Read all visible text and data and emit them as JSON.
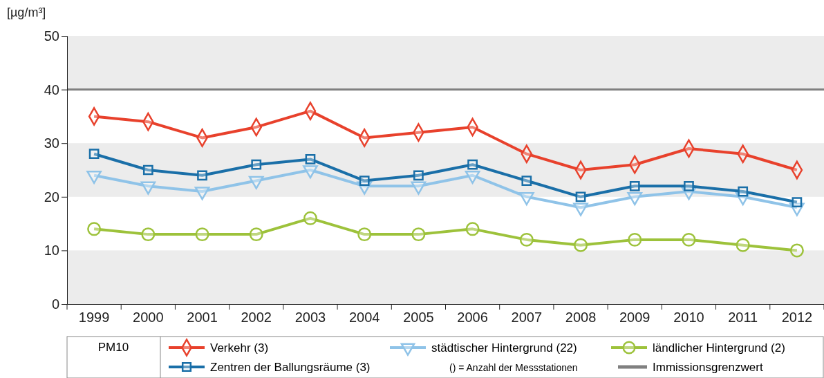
{
  "chart_data": {
    "type": "line",
    "ylabel": "[µg/m³]",
    "legend_title": "PM10",
    "categories": [
      "1999",
      "2000",
      "2001",
      "2002",
      "2003",
      "2004",
      "2005",
      "2006",
      "2007",
      "2008",
      "2009",
      "2010",
      "2011",
      "2012"
    ],
    "series": [
      {
        "name": "Verkehr (3)",
        "color": "#e8412c",
        "marker": "diamond",
        "values": [
          35,
          34,
          31,
          33,
          36,
          31,
          32,
          33,
          28,
          25,
          26,
          29,
          28,
          25
        ]
      },
      {
        "name": "städtischer Hintergrund (22)",
        "color": "#8fc3e8",
        "marker": "triangle",
        "values": [
          24,
          22,
          21,
          23,
          25,
          22,
          22,
          24,
          20,
          18,
          20,
          21,
          20,
          18
        ]
      },
      {
        "name": "ländlicher Hintergrund (2)",
        "color": "#9dc23b",
        "marker": "circle",
        "values": [
          14,
          13,
          13,
          13,
          16,
          13,
          13,
          14,
          12,
          11,
          12,
          12,
          11,
          10
        ]
      },
      {
        "name": "Zentren der Ballungsräume (3)",
        "color": "#1a6fa8",
        "marker": "square",
        "values": [
          28,
          25,
          24,
          26,
          27,
          23,
          24,
          26,
          23,
          20,
          22,
          22,
          21,
          19
        ]
      }
    ],
    "ylim": [
      0,
      50
    ],
    "yticks": [
      0,
      10,
      20,
      30,
      40,
      50
    ],
    "grid": false,
    "legend": "bottom",
    "line_style": "solid",
    "ref_lines": [
      {
        "axis": "y",
        "value": 40,
        "label": "Immissionsgrenzwert",
        "color": "#808080"
      }
    ],
    "bands": [
      {
        "axis": "y",
        "from": 0,
        "to": 10,
        "color": "#ececec"
      },
      {
        "axis": "y",
        "from": 20,
        "to": 30,
        "color": "#ececec"
      },
      {
        "axis": "y",
        "from": 40,
        "to": 50,
        "color": "#ececec"
      }
    ],
    "annotations": [
      "() = Anzahl der Messstationen"
    ]
  }
}
